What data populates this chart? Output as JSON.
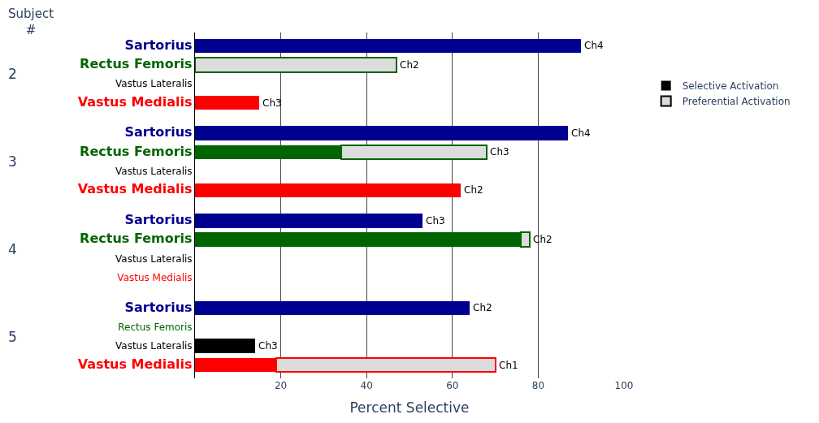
{
  "chart_data": {
    "type": "bar",
    "orientation": "horizontal",
    "stacked": true,
    "xlabel": "Percent Selective",
    "categories": [
      "Sartorius",
      "Rectus Femoris",
      "Vastus Lateralis",
      "Vastus Medialis",
      "Sartorius",
      "Rectus Femoris",
      "Vastus Lateralis",
      "Vastus Medialis",
      "Sartorius",
      "Rectus Femoris",
      "Vastus Lateralis",
      "Vastus Medialis",
      "Sartorius",
      "Rectus Femoris",
      "Vastus Lateralis",
      "Vastus Medialis"
    ],
    "series": [
      {
        "name": "Selective Activation",
        "color": "#000000",
        "colors": [
          "#000090",
          "#006400",
          "#000000",
          "#ff0000",
          "#000090",
          "#006400",
          "#000000",
          "#ff0000",
          "#000090",
          "#006400",
          "#000000",
          "#ff0000",
          "#000090",
          "#006400",
          "#000000",
          "#ff0000"
        ],
        "values": [
          90,
          null,
          null,
          15,
          87,
          34,
          null,
          62,
          53,
          76,
          null,
          null,
          64,
          null,
          14,
          19
        ]
      },
      {
        "name": "Preferential Activation",
        "color": "#dcdcdc",
        "values": [
          null,
          47,
          null,
          null,
          null,
          34,
          null,
          null,
          null,
          2,
          null,
          null,
          null,
          null,
          null,
          51
        ]
      }
    ],
    "value_labels": [
      "Ch4",
      "Ch2",
      null,
      "Ch3",
      "Ch4",
      "Ch3",
      null,
      "Ch2",
      "Ch3",
      "Ch2",
      null,
      null,
      "Ch2",
      null,
      "Ch3",
      "Ch1"
    ],
    "annotations": [
      "Subject\n#",
      "2",
      "3",
      "4",
      "5"
    ],
    "xlim": [
      0,
      100
    ],
    "xticks": [
      {
        "value": 0,
        "label": null
      },
      20,
      40,
      60,
      80,
      100
    ],
    "grid": "x",
    "legend": "right"
  }
}
